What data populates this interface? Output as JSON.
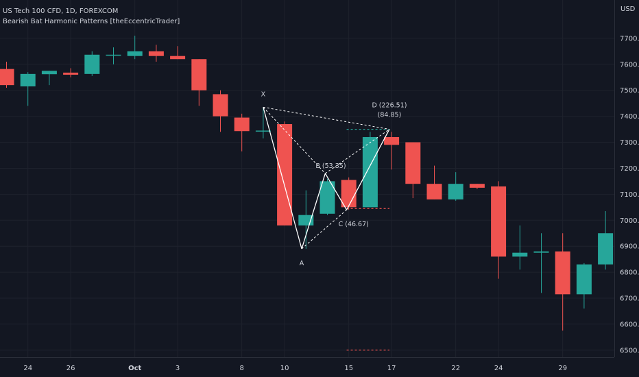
{
  "header": {
    "symbol": "US Tech 100 CFD, 1D, FOREXCOM",
    "indicator": "Bearish Bat Harmonic Patterns [theEccentricTrader]",
    "currency": "USD"
  },
  "colors": {
    "background": "#131722",
    "grid": "#1e222d",
    "bullish": "#26a69a",
    "bearish": "#ef5350",
    "text": "#d1d4dc",
    "pattern": "#ffffff"
  },
  "chart_data": {
    "type": "candlestick",
    "title": "",
    "ylim": [
      6460,
      7800
    ],
    "y_ticks": [
      6500,
      6600,
      6700,
      6800,
      6900,
      7000,
      7100,
      7200,
      7300,
      7400,
      7500,
      7600,
      7700
    ],
    "y_tick_labels": [
      "6500.0",
      "6600.0",
      "6700.0",
      "6800.0",
      "6900.0",
      "7000.0",
      "7100.0",
      "7200.0",
      "7300.0",
      "7400.0",
      "7500.0",
      "7600.0",
      "7700.0"
    ],
    "x_ticks": [
      {
        "label": "24",
        "index": 1
      },
      {
        "label": "26",
        "index": 3
      },
      {
        "label": "Oct",
        "index": 6
      },
      {
        "label": "3",
        "index": 8
      },
      {
        "label": "8",
        "index": 11
      },
      {
        "label": "10",
        "index": 13
      },
      {
        "label": "15",
        "index": 16
      },
      {
        "label": "17",
        "index": 18
      },
      {
        "label": "22",
        "index": 21
      },
      {
        "label": "24",
        "index": 23
      },
      {
        "label": "29",
        "index": 26
      }
    ],
    "candles": [
      {
        "o": 7582,
        "h": 7610,
        "l": 7510,
        "c": 7520
      },
      {
        "o": 7515,
        "h": 7570,
        "l": 7440,
        "c": 7563
      },
      {
        "o": 7562,
        "h": 7575,
        "l": 7520,
        "c": 7575
      },
      {
        "o": 7568,
        "h": 7585,
        "l": 7550,
        "c": 7560
      },
      {
        "o": 7563,
        "h": 7650,
        "l": 7555,
        "c": 7637
      },
      {
        "o": 7637,
        "h": 7665,
        "l": 7600,
        "c": 7637
      },
      {
        "o": 7632,
        "h": 7710,
        "l": 7620,
        "c": 7650
      },
      {
        "o": 7650,
        "h": 7675,
        "l": 7610,
        "c": 7632
      },
      {
        "o": 7632,
        "h": 7670,
        "l": 7620,
        "c": 7620
      },
      {
        "o": 7620,
        "h": 7620,
        "l": 7440,
        "c": 7500
      },
      {
        "o": 7485,
        "h": 7500,
        "l": 7340,
        "c": 7400
      },
      {
        "o": 7395,
        "h": 7410,
        "l": 7265,
        "c": 7343
      },
      {
        "o": 7343,
        "h": 7435,
        "l": 7315,
        "c": 7345
      },
      {
        "o": 7370,
        "h": 7380,
        "l": 6980,
        "c": 6980
      },
      {
        "o": 6980,
        "h": 7115,
        "l": 6890,
        "c": 7020
      },
      {
        "o": 7025,
        "h": 7160,
        "l": 7020,
        "c": 7150
      },
      {
        "o": 7155,
        "h": 7165,
        "l": 7040,
        "c": 7050
      },
      {
        "o": 7050,
        "h": 7340,
        "l": 7050,
        "c": 7320
      },
      {
        "o": 7320,
        "h": 7340,
        "l": 7195,
        "c": 7290
      },
      {
        "o": 7300,
        "h": 7300,
        "l": 7085,
        "c": 7140
      },
      {
        "o": 7140,
        "h": 7210,
        "l": 7080,
        "c": 7080
      },
      {
        "o": 7080,
        "h": 7185,
        "l": 7075,
        "c": 7140
      },
      {
        "o": 7140,
        "h": 7140,
        "l": 7120,
        "c": 7125
      },
      {
        "o": 7130,
        "h": 7150,
        "l": 6775,
        "c": 6860
      },
      {
        "o": 6860,
        "h": 6980,
        "l": 6810,
        "c": 6875
      },
      {
        "o": 6875,
        "h": 6950,
        "l": 6720,
        "c": 6880
      },
      {
        "o": 6880,
        "h": 6950,
        "l": 6575,
        "c": 6715
      },
      {
        "o": 6715,
        "h": 6835,
        "l": 6660,
        "c": 6830
      },
      {
        "o": 6830,
        "h": 7035,
        "l": 6810,
        "c": 6950
      }
    ],
    "pattern": {
      "name": "Bearish Bat",
      "points": [
        {
          "label": "X",
          "index": 12,
          "price": 7435
        },
        {
          "label": "A",
          "index": 13.8,
          "price": 6890
        },
        {
          "label": "B",
          "index": 14.9,
          "price": 7180
        },
        {
          "label": "C",
          "index": 15.9,
          "price": 7040
        },
        {
          "label": "D",
          "index": 17.9,
          "price": 7350
        }
      ],
      "labels": {
        "x": "X",
        "a": "A",
        "b": "B (53.35)",
        "c": "C (46.67)",
        "d1": "D (226.51)",
        "d2": "(84.85)"
      },
      "levels": [
        {
          "price": 7350,
          "color": "#26a69a",
          "from": 15.9,
          "to": 17.9
        },
        {
          "price": 7045,
          "color": "#ef5350",
          "from": 15.9,
          "to": 17.9
        },
        {
          "price": 6500,
          "color": "#ef5350",
          "from": 15.9,
          "to": 17.9
        }
      ]
    }
  }
}
